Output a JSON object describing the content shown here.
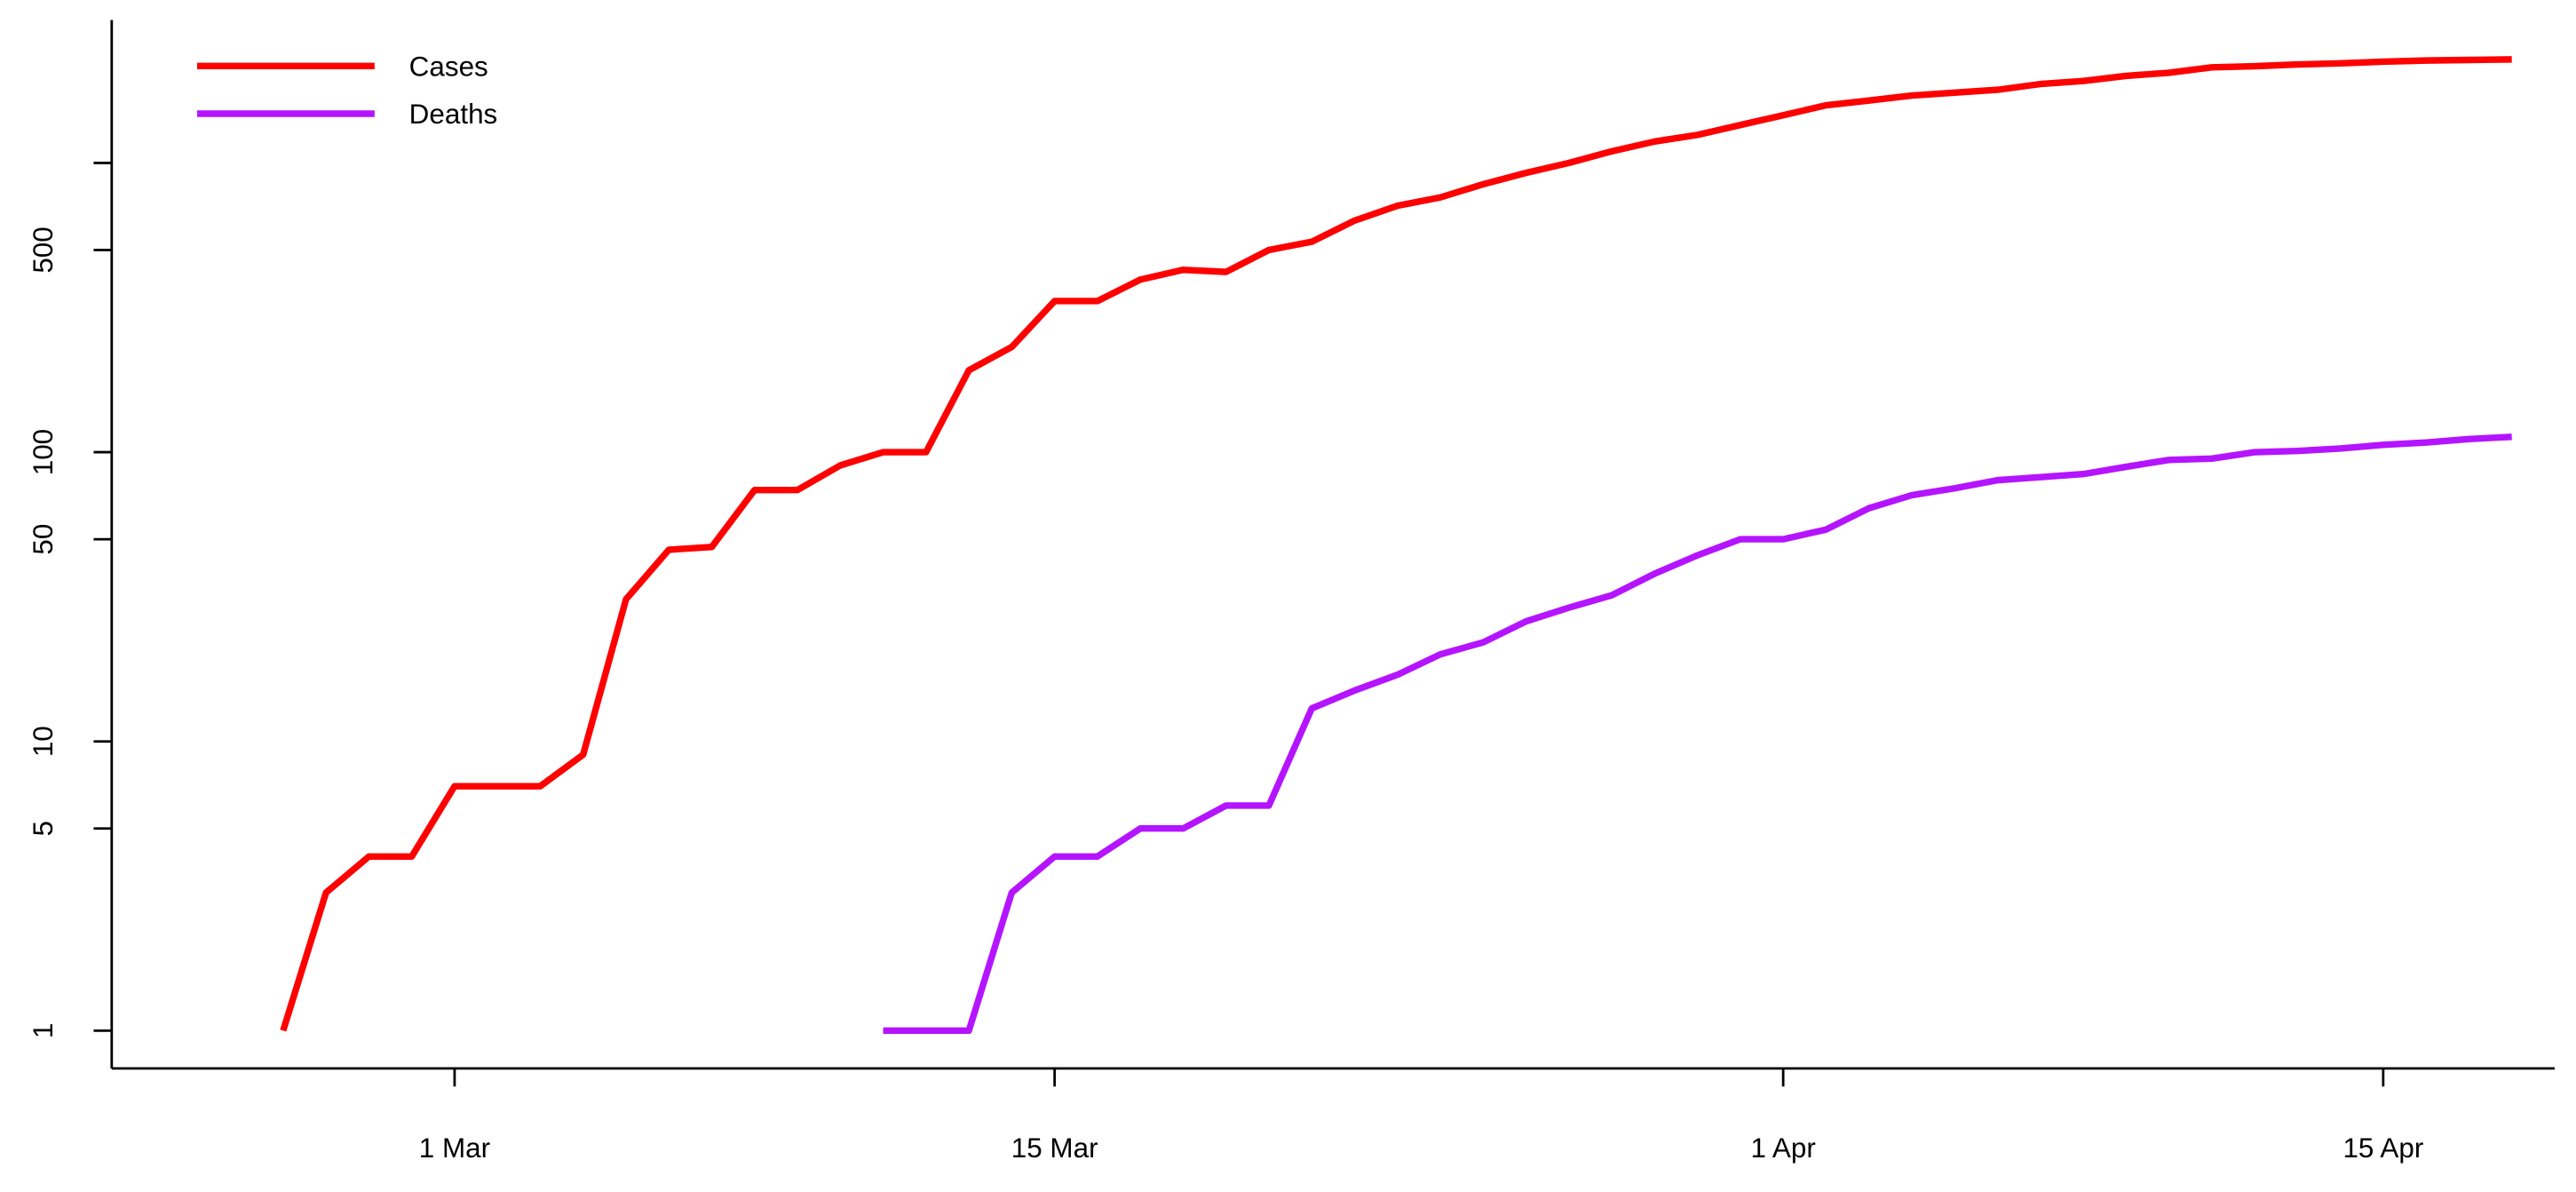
{
  "chart_data": {
    "type": "line",
    "log_y": true,
    "legend": "topleft",
    "x": [
      "26 Feb",
      "27 Feb",
      "28 Feb",
      "29 Feb",
      "1 Mar",
      "2 Mar",
      "3 Mar",
      "4 Mar",
      "5 Mar",
      "6 Mar",
      "7 Mar",
      "8 Mar",
      "9 Mar",
      "10 Mar",
      "11 Mar",
      "12 Mar",
      "13 Mar",
      "14 Mar",
      "15 Mar",
      "16 Mar",
      "17 Mar",
      "18 Mar",
      "19 Mar",
      "20 Mar",
      "21 Mar",
      "22 Mar",
      "23 Mar",
      "24 Mar",
      "25 Mar",
      "26 Mar",
      "27 Mar",
      "28 Mar",
      "29 Mar",
      "30 Mar",
      "31 Mar",
      "1 Apr",
      "2 Apr",
      "3 Apr",
      "4 Apr",
      "5 Apr",
      "6 Apr",
      "7 Apr",
      "8 Apr",
      "9 Apr",
      "10 Apr",
      "11 Apr",
      "12 Apr",
      "13 Apr",
      "14 Apr",
      "15 Apr",
      "16 Apr",
      "17 Apr",
      "18 Apr"
    ],
    "series": [
      {
        "name": "Cases",
        "color": "#ff0000",
        "values": [
          1,
          3,
          4,
          4,
          7,
          7,
          7,
          9,
          31,
          46,
          47,
          74,
          74,
          90,
          100,
          100,
          192,
          231,
          333,
          333,
          395,
          427,
          420,
          500,
          534,
          632,
          711,
          760,
          844,
          924,
          1000,
          1097,
          1186,
          1250,
          1352,
          1462,
          1582,
          1644,
          1710,
          1750,
          1790,
          1874,
          1920,
          2000,
          2050,
          2140,
          2160,
          2190,
          2210,
          2240,
          2260,
          2270,
          2280
        ]
      },
      {
        "name": "Deaths",
        "color": "#b414ff",
        "values": [
          null,
          null,
          null,
          null,
          null,
          null,
          null,
          null,
          null,
          null,
          null,
          null,
          null,
          null,
          1,
          1,
          1,
          3,
          4,
          4,
          5,
          5,
          6,
          6,
          13,
          15,
          17,
          20,
          22,
          26,
          29,
          32,
          38,
          44,
          50,
          50,
          54,
          64,
          71,
          75,
          80,
          82,
          84,
          89,
          94,
          95,
          100,
          101,
          103,
          106,
          108,
          111,
          113
        ]
      }
    ],
    "xlim": [
      "22 Feb",
      "19 Apr"
    ],
    "xticks": [
      "1 Mar",
      "15 Mar",
      "1 Apr",
      "15 Apr"
    ],
    "ylim": [
      0.74,
      3120
    ],
    "yticks": [
      1,
      5,
      10,
      50,
      100,
      500,
      {
        "value": 1000,
        "label": null
      }
    ]
  }
}
